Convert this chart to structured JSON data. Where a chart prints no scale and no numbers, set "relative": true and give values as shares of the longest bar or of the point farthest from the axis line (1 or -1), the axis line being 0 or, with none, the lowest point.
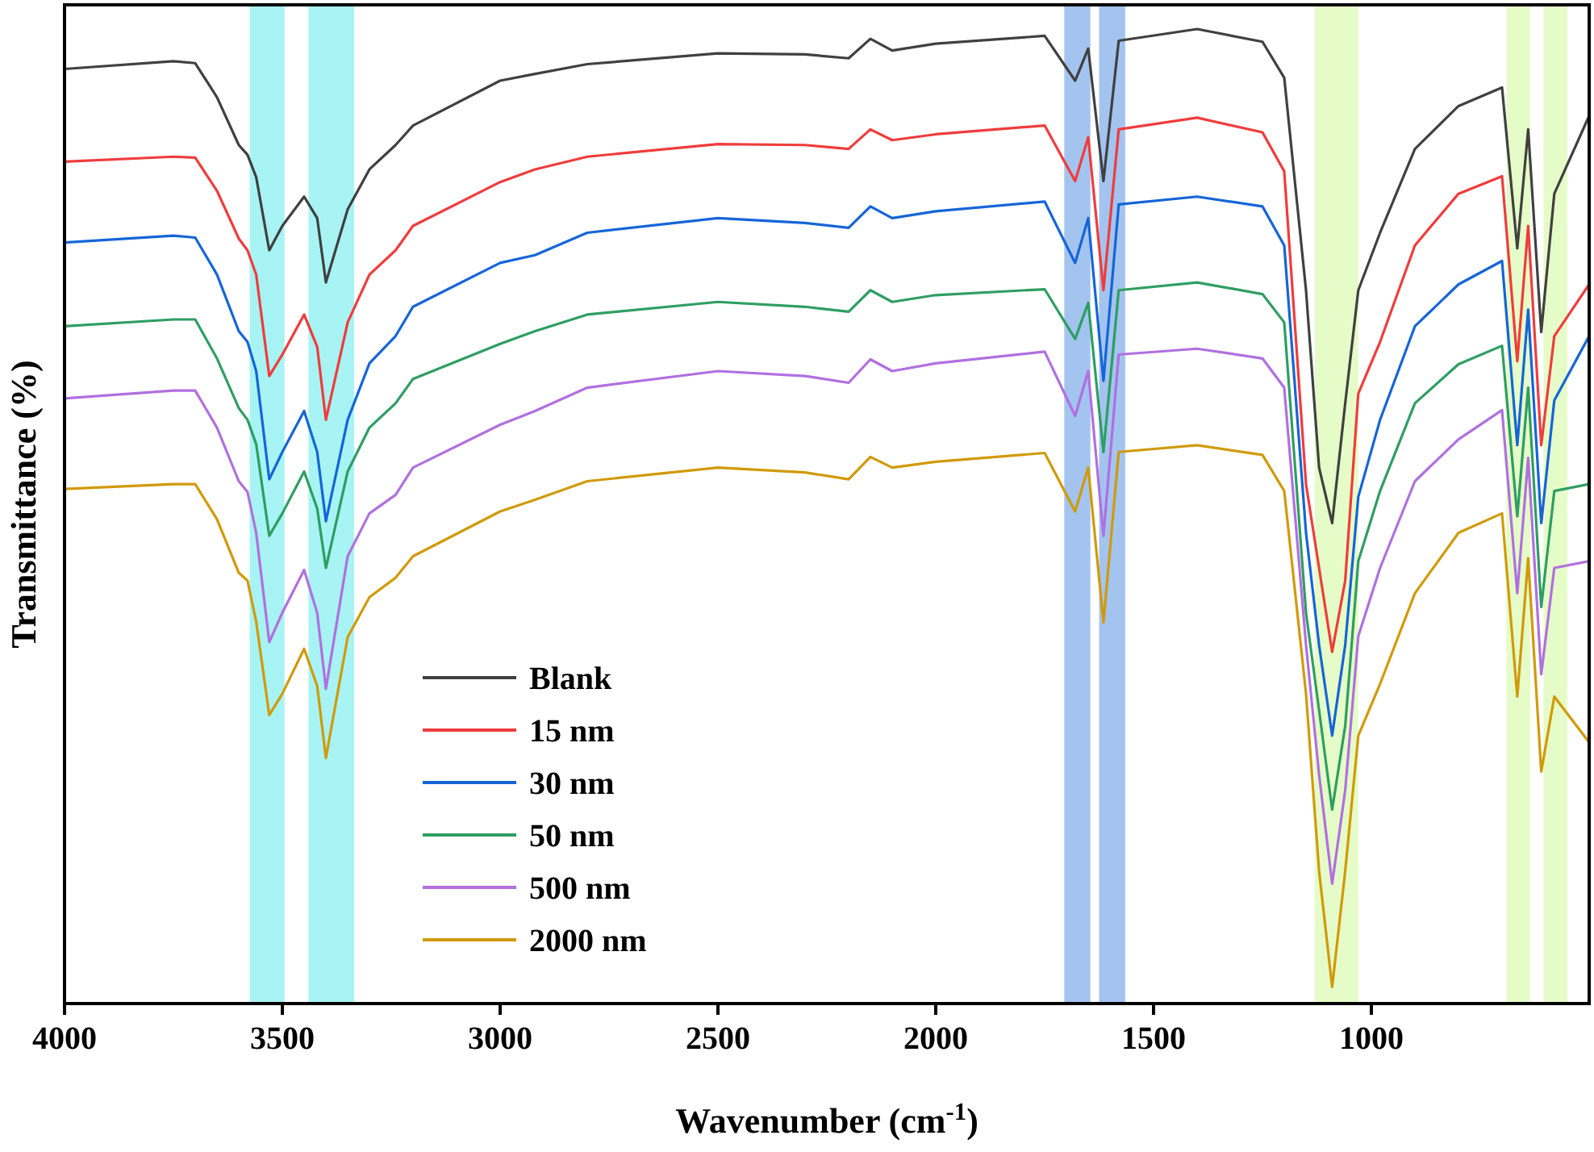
{
  "chart_data": {
    "type": "line",
    "relative": true,
    "xlabel": "Wavenumber (cm$^{-1}$)",
    "ylabel": "Transmittance (%)",
    "xlim": [
      4000,
      500
    ],
    "xticks": [
      4000,
      3500,
      3000,
      2500,
      2000,
      1500,
      1000
    ],
    "grid": false,
    "legend": "bottom left",
    "marker": "none",
    "line_style": "solid",
    "tick_labels": "x",
    "x": [
      4000,
      3750,
      3700,
      3650,
      3600,
      3580,
      3560,
      3530,
      3500,
      3450,
      3420,
      3400,
      3350,
      3300,
      3240,
      3200,
      3000,
      2920,
      2800,
      2500,
      2300,
      2200,
      2150,
      2100,
      2000,
      1750,
      1680,
      1650,
      1615,
      1580,
      1400,
      1250,
      1200,
      1150,
      1120,
      1090,
      1060,
      1030,
      980,
      900,
      800,
      700,
      665,
      640,
      610,
      580,
      500
    ],
    "bands": [
      {
        "axis": "x",
        "from": 3575,
        "to": 3495,
        "color": "#a8f4f4"
      },
      {
        "axis": "x",
        "from": 3440,
        "to": 3335,
        "color": "#a8f4f4"
      },
      {
        "axis": "x",
        "from": 1705,
        "to": 1645,
        "color": "#a4c4f0"
      },
      {
        "axis": "x",
        "from": 1625,
        "to": 1565,
        "color": "#a4c4f0"
      },
      {
        "axis": "x",
        "from": 1130,
        "to": 1030,
        "color": "#e6fcc8"
      },
      {
        "axis": "x",
        "from": 690,
        "to": 635,
        "color": "#e6fcc8"
      },
      {
        "axis": "x",
        "from": 605,
        "to": 550,
        "color": "#e6fcc8"
      }
    ],
    "series": [
      {
        "name": "Blank",
        "color": "#404040",
        "values": [
          0.959,
          0.967,
          0.965,
          0.93,
          0.881,
          0.871,
          0.848,
          0.773,
          0.798,
          0.828,
          0.806,
          0.74,
          0.815,
          0.856,
          0.881,
          0.901,
          0.947,
          0.954,
          0.964,
          0.975,
          0.974,
          0.97,
          0.99,
          0.978,
          0.985,
          0.993,
          0.947,
          0.98,
          0.844,
          0.988,
          1.0,
          0.987,
          0.95,
          0.732,
          0.55,
          0.493,
          0.616,
          0.732,
          0.791,
          0.877,
          0.921,
          0.94,
          0.775,
          0.897,
          0.689,
          0.831,
          0.911
        ]
      },
      {
        "name": "15 nm",
        "color": "#f03c3c",
        "values": [
          0.864,
          0.869,
          0.868,
          0.834,
          0.785,
          0.773,
          0.748,
          0.644,
          0.666,
          0.707,
          0.674,
          0.599,
          0.699,
          0.748,
          0.773,
          0.798,
          0.843,
          0.856,
          0.869,
          0.882,
          0.881,
          0.877,
          0.897,
          0.886,
          0.892,
          0.901,
          0.844,
          0.889,
          0.732,
          0.897,
          0.909,
          0.894,
          0.854,
          0.533,
          0.447,
          0.361,
          0.434,
          0.626,
          0.679,
          0.778,
          0.831,
          0.849,
          0.659,
          0.798,
          0.573,
          0.685,
          0.738
        ]
      },
      {
        "name": "30 nm",
        "color": "#1565d8",
        "values": [
          0.781,
          0.788,
          0.786,
          0.748,
          0.69,
          0.679,
          0.649,
          0.538,
          0.566,
          0.608,
          0.566,
          0.495,
          0.599,
          0.657,
          0.685,
          0.715,
          0.76,
          0.768,
          0.791,
          0.806,
          0.801,
          0.796,
          0.818,
          0.806,
          0.813,
          0.823,
          0.76,
          0.806,
          0.639,
          0.82,
          0.828,
          0.818,
          0.778,
          0.483,
          0.368,
          0.275,
          0.368,
          0.52,
          0.599,
          0.695,
          0.738,
          0.762,
          0.573,
          0.712,
          0.493,
          0.619,
          0.685
        ]
      },
      {
        "name": "50 nm",
        "color": "#2e9e62",
        "values": [
          0.695,
          0.702,
          0.702,
          0.662,
          0.611,
          0.599,
          0.574,
          0.48,
          0.503,
          0.546,
          0.508,
          0.447,
          0.546,
          0.591,
          0.616,
          0.641,
          0.677,
          0.69,
          0.707,
          0.72,
          0.715,
          0.71,
          0.732,
          0.72,
          0.727,
          0.733,
          0.682,
          0.719,
          0.566,
          0.732,
          0.74,
          0.728,
          0.699,
          0.401,
          0.301,
          0.199,
          0.285,
          0.454,
          0.526,
          0.616,
          0.656,
          0.675,
          0.5,
          0.632,
          0.407,
          0.526,
          0.533
        ]
      },
      {
        "name": "500 nm",
        "color": "#b070e0",
        "values": [
          0.621,
          0.629,
          0.629,
          0.591,
          0.536,
          0.525,
          0.483,
          0.371,
          0.401,
          0.445,
          0.401,
          0.323,
          0.459,
          0.503,
          0.522,
          0.55,
          0.594,
          0.608,
          0.632,
          0.649,
          0.644,
          0.637,
          0.661,
          0.649,
          0.657,
          0.669,
          0.603,
          0.649,
          0.48,
          0.666,
          0.672,
          0.662,
          0.632,
          0.368,
          0.235,
          0.123,
          0.219,
          0.377,
          0.447,
          0.536,
          0.579,
          0.609,
          0.421,
          0.56,
          0.338,
          0.447,
          0.454
        ]
      },
      {
        "name": "2000 nm",
        "color": "#d19a0a",
        "values": [
          0.528,
          0.533,
          0.533,
          0.497,
          0.442,
          0.434,
          0.392,
          0.296,
          0.318,
          0.364,
          0.326,
          0.252,
          0.376,
          0.417,
          0.437,
          0.459,
          0.505,
          0.517,
          0.536,
          0.55,
          0.545,
          0.538,
          0.561,
          0.55,
          0.556,
          0.565,
          0.505,
          0.55,
          0.391,
          0.566,
          0.573,
          0.563,
          0.526,
          0.318,
          0.136,
          0.017,
          0.136,
          0.275,
          0.328,
          0.421,
          0.483,
          0.503,
          0.315,
          0.457,
          0.238,
          0.315,
          0.268
        ]
      }
    ]
  }
}
